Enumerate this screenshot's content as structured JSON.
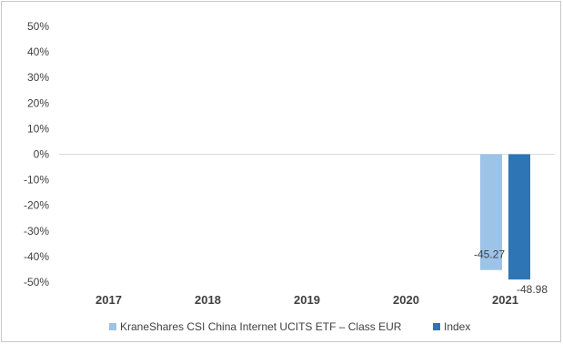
{
  "chart_data": {
    "type": "bar",
    "categories": [
      "2017",
      "2018",
      "2019",
      "2020",
      "2021"
    ],
    "series": [
      {
        "name": "KraneShares CSI China Internet UCITS ETF – Class EUR",
        "color": "#9dc3e6",
        "values": [
          null,
          null,
          null,
          null,
          -45.27
        ]
      },
      {
        "name": "Index",
        "color": "#2e75b6",
        "values": [
          null,
          null,
          null,
          null,
          -48.98
        ]
      }
    ],
    "data_labels": [
      {
        "series": 0,
        "category": 4,
        "text": "-45.27"
      },
      {
        "series": 1,
        "category": 4,
        "text": "-48.98"
      }
    ],
    "ylim": [
      -50,
      50
    ],
    "ytick_step": 10,
    "ytick_labels": [
      "50%",
      "40%",
      "30%",
      "20%",
      "10%",
      "0%",
      "-10%",
      "-20%",
      "-30%",
      "-40%",
      "-50%"
    ],
    "grid": false,
    "legend_position": "bottom",
    "xlabel": "",
    "ylabel": "",
    "title": ""
  }
}
